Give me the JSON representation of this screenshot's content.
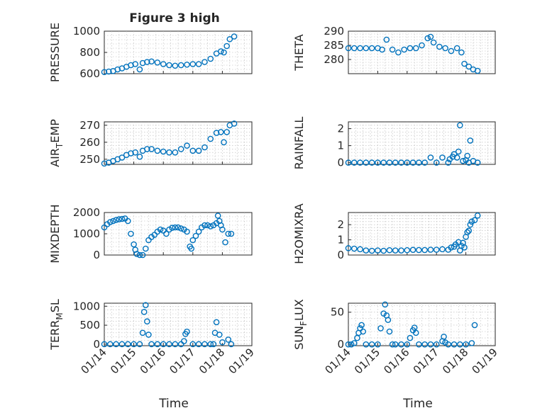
{
  "figure": {
    "title": "Figure 3 high",
    "xlabel": "Time",
    "xticks": [
      "01/14",
      "01/15",
      "01/16",
      "01/17",
      "01/18",
      "01/19"
    ]
  },
  "chart_data": [
    {
      "type": "scatter",
      "ylabel_parts": [
        "PRESSURE"
      ],
      "ylim": [
        600,
        1000
      ],
      "yticks": [
        600,
        800,
        1000
      ],
      "x": [
        14.0,
        14.15,
        14.3,
        14.45,
        14.6,
        14.75,
        14.9,
        15.05,
        15.2,
        15.3,
        15.45,
        15.6,
        15.8,
        16.0,
        16.2,
        16.4,
        16.6,
        16.8,
        17.0,
        17.2,
        17.4,
        17.6,
        17.8,
        17.95,
        18.05,
        18.15,
        18.25,
        18.4
      ],
      "y": [
        615,
        620,
        625,
        640,
        650,
        665,
        680,
        690,
        640,
        700,
        710,
        715,
        705,
        690,
        680,
        675,
        680,
        685,
        690,
        690,
        710,
        740,
        790,
        810,
        800,
        860,
        925,
        950
      ]
    },
    {
      "type": "scatter",
      "ylabel_parts": [
        "THETA"
      ],
      "ylim": [
        275,
        290
      ],
      "yticks": [
        280,
        285,
        290
      ],
      "x": [
        14.0,
        14.2,
        14.4,
        14.6,
        14.8,
        15.0,
        15.15,
        15.3,
        15.5,
        15.7,
        15.9,
        16.1,
        16.3,
        16.5,
        16.7,
        16.8,
        16.9,
        17.1,
        17.3,
        17.5,
        17.7,
        17.85,
        17.95,
        18.1,
        18.25,
        18.4
      ],
      "y": [
        284,
        284,
        284,
        284,
        284,
        284,
        283.5,
        287,
        283.5,
        282.5,
        283.5,
        284,
        284,
        285,
        287.5,
        288,
        286,
        284.5,
        284,
        283,
        284,
        282.5,
        278.5,
        277.5,
        276.5,
        276
      ]
    },
    {
      "type": "scatter",
      "ylabel_parts": [
        "AIR",
        "T",
        "EMP"
      ],
      "ylim": [
        247,
        272
      ],
      "yticks": [
        250,
        260,
        270
      ],
      "x": [
        14.0,
        14.15,
        14.3,
        14.45,
        14.6,
        14.75,
        14.9,
        15.05,
        15.2,
        15.3,
        15.45,
        15.6,
        15.8,
        16.0,
        16.2,
        16.4,
        16.6,
        16.8,
        17.0,
        17.2,
        17.4,
        17.6,
        17.8,
        17.95,
        18.05,
        18.15,
        18.25,
        18.4
      ],
      "y": [
        247.5,
        248,
        249,
        250,
        251,
        252.5,
        253.5,
        254,
        251.5,
        255,
        256,
        256,
        255,
        254.5,
        254,
        254,
        256,
        258,
        255,
        255,
        257,
        262,
        265.5,
        266,
        260,
        266,
        270,
        271
      ]
    },
    {
      "type": "scatter",
      "ylabel_parts": [
        "RAINFALL"
      ],
      "ylim": [
        -0.1,
        2.4
      ],
      "yticks": [
        0,
        1,
        2
      ],
      "x": [
        14.0,
        14.2,
        14.4,
        14.6,
        14.8,
        15.0,
        15.2,
        15.4,
        15.6,
        15.8,
        16.0,
        16.2,
        16.4,
        16.6,
        16.8,
        17.0,
        17.2,
        17.4,
        17.45,
        17.55,
        17.6,
        17.7,
        17.75,
        17.8,
        17.9,
        18.0,
        18.05,
        18.1,
        18.15,
        18.25,
        18.4
      ],
      "y": [
        0,
        0,
        0,
        0,
        0,
        0,
        0,
        0,
        0,
        0,
        0,
        0,
        0,
        0,
        0.3,
        0,
        0.3,
        0,
        0.2,
        0.35,
        0.5,
        0.3,
        0.65,
        2.2,
        0.1,
        0.15,
        0.4,
        0,
        1.3,
        0.1,
        0
      ]
    },
    {
      "type": "scatter",
      "ylabel_parts": [
        "MIXDEPTH"
      ],
      "ylim": [
        0,
        2000
      ],
      "yticks": [
        0,
        1000,
        2000
      ],
      "x": [
        14.0,
        14.1,
        14.2,
        14.3,
        14.4,
        14.5,
        14.6,
        14.7,
        14.8,
        14.9,
        15.0,
        15.05,
        15.1,
        15.2,
        15.3,
        15.4,
        15.5,
        15.6,
        15.7,
        15.8,
        15.9,
        16.0,
        16.1,
        16.2,
        16.3,
        16.4,
        16.5,
        16.6,
        16.7,
        16.8,
        16.9,
        16.95,
        17.0,
        17.1,
        17.2,
        17.3,
        17.4,
        17.5,
        17.6,
        17.7,
        17.8,
        17.85,
        17.9,
        17.95,
        18.0,
        18.1,
        18.2,
        18.3
      ],
      "y": [
        1300,
        1450,
        1550,
        1600,
        1650,
        1680,
        1700,
        1720,
        1600,
        1000,
        500,
        250,
        50,
        0,
        0,
        300,
        700,
        850,
        950,
        1100,
        1200,
        1150,
        1000,
        1200,
        1280,
        1300,
        1300,
        1250,
        1200,
        1100,
        400,
        300,
        700,
        900,
        1100,
        1300,
        1400,
        1400,
        1350,
        1400,
        1500,
        1850,
        1600,
        1400,
        1200,
        600,
        1000,
        1000
      ]
    },
    {
      "type": "scatter",
      "ylabel_parts": [
        "H2OMIXRA"
      ],
      "ylim": [
        0,
        2.8
      ],
      "yticks": [
        0,
        1,
        2
      ],
      "x": [
        14.0,
        14.2,
        14.4,
        14.6,
        14.8,
        15.0,
        15.2,
        15.4,
        15.6,
        15.8,
        16.0,
        16.2,
        16.4,
        16.6,
        16.8,
        17.0,
        17.2,
        17.4,
        17.5,
        17.6,
        17.65,
        17.75,
        17.8,
        17.85,
        17.9,
        17.95,
        18.0,
        18.05,
        18.1,
        18.15,
        18.2,
        18.3,
        18.4
      ],
      "y": [
        0.45,
        0.42,
        0.38,
        0.3,
        0.28,
        0.3,
        0.28,
        0.32,
        0.3,
        0.3,
        0.32,
        0.34,
        0.33,
        0.33,
        0.35,
        0.35,
        0.38,
        0.35,
        0.5,
        0.55,
        0.7,
        0.85,
        0.3,
        0.6,
        0.8,
        0.5,
        1.2,
        1.5,
        1.6,
        2.0,
        2.2,
        2.3,
        2.6
      ]
    },
    {
      "type": "scatter",
      "ylabel_parts": [
        "TERR",
        "M",
        "SL"
      ],
      "ylim": [
        -40,
        1080
      ],
      "yticks": [
        0,
        500,
        1000
      ],
      "x": [
        14.0,
        14.2,
        14.4,
        14.6,
        14.8,
        15.0,
        15.2,
        15.3,
        15.35,
        15.4,
        15.45,
        15.5,
        15.6,
        15.8,
        16.0,
        16.2,
        16.4,
        16.6,
        16.7,
        16.75,
        16.8,
        17.0,
        17.2,
        17.4,
        17.6,
        17.7,
        17.75,
        17.8,
        17.9,
        18.0,
        18.2,
        18.3
      ],
      "y": [
        0,
        0,
        0,
        0,
        0,
        0,
        0,
        300,
        850,
        1030,
        600,
        250,
        0,
        0,
        0,
        0,
        0,
        0,
        80,
        270,
        330,
        0,
        0,
        0,
        0,
        0,
        300,
        580,
        250,
        50,
        120,
        0
      ]
    },
    {
      "type": "scatter",
      "ylabel_parts": [
        "SUN",
        "F",
        "LUX"
      ],
      "ylim": [
        -2,
        64
      ],
      "yticks": [
        0,
        50
      ],
      "x": [
        14.0,
        14.1,
        14.2,
        14.3,
        14.35,
        14.4,
        14.45,
        14.5,
        14.6,
        14.8,
        15.0,
        15.1,
        15.2,
        15.25,
        15.3,
        15.35,
        15.4,
        15.5,
        15.6,
        15.8,
        16.0,
        16.1,
        16.2,
        16.25,
        16.3,
        16.4,
        16.6,
        16.8,
        17.0,
        17.2,
        17.25,
        17.3,
        17.4,
        17.6,
        17.8,
        18.0,
        18.2,
        18.3
      ],
      "y": [
        0,
        0,
        2,
        10,
        18,
        25,
        30,
        20,
        0,
        0,
        0,
        25,
        48,
        62,
        45,
        38,
        20,
        0,
        0,
        0,
        0,
        10,
        22,
        26,
        18,
        0,
        0,
        0,
        0,
        5,
        12,
        3,
        0,
        0,
        0,
        0,
        2,
        30
      ]
    }
  ]
}
